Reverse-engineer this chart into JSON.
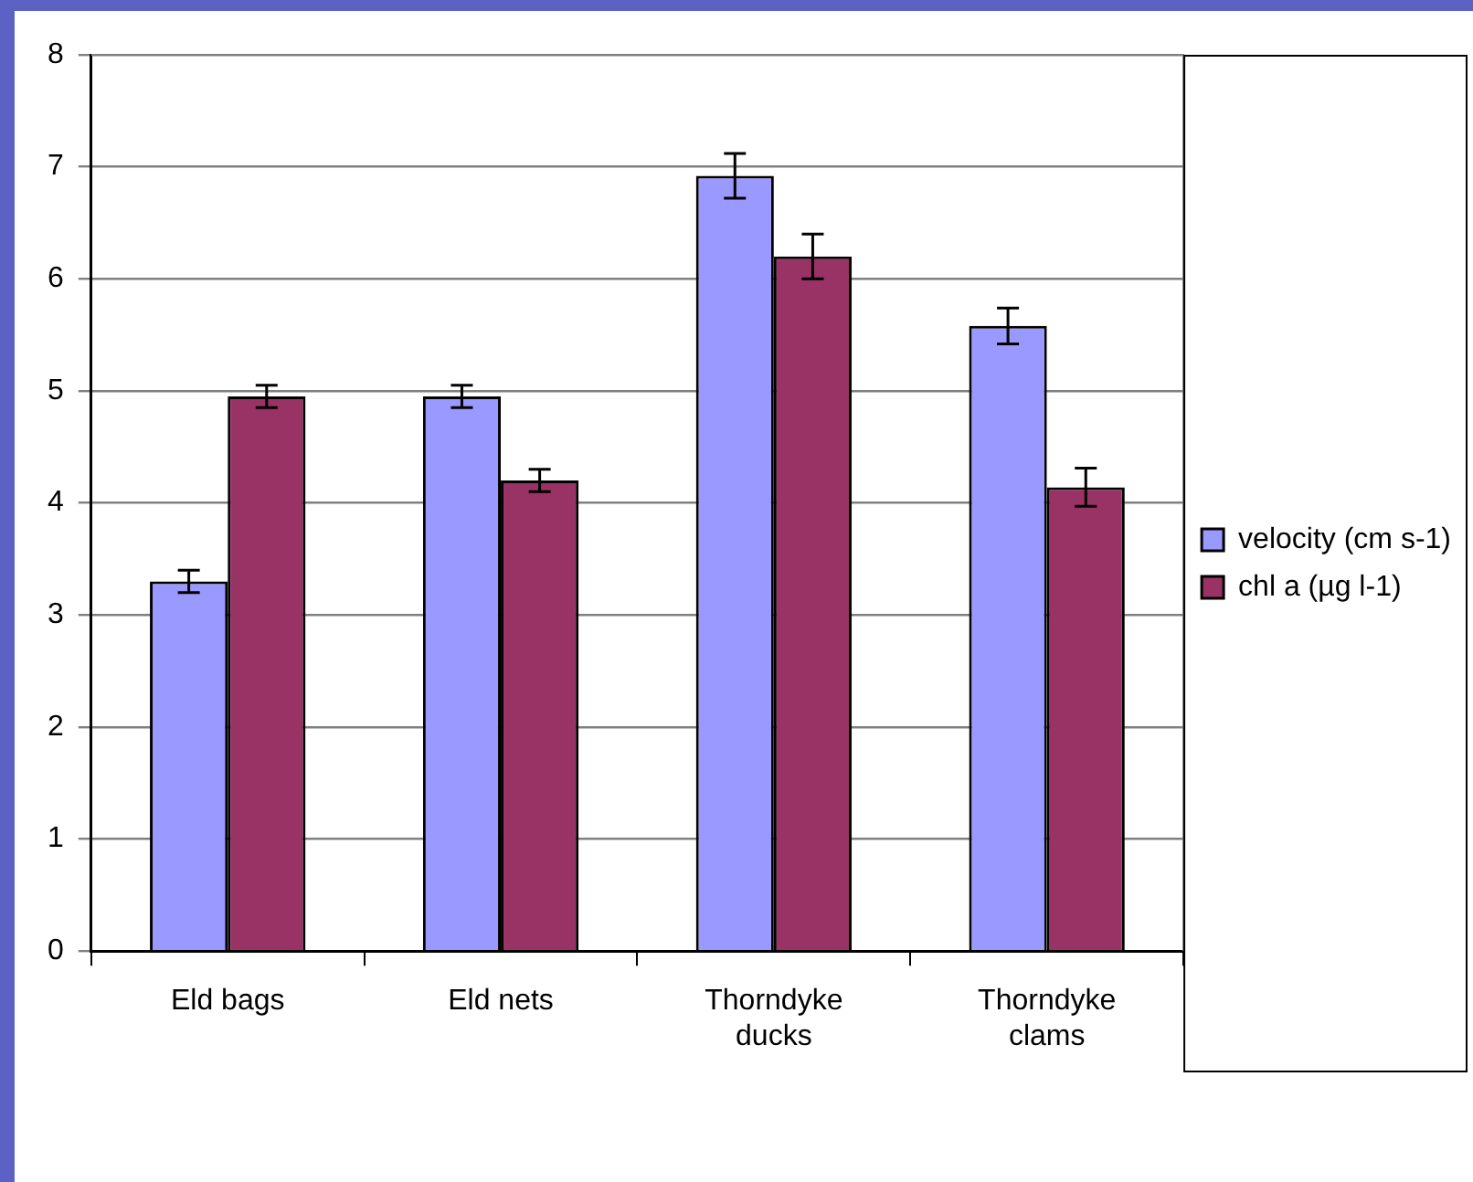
{
  "chart_data": {
    "type": "bar",
    "categories": [
      "Eld bags",
      "Eld nets",
      "Thorndyke ducks",
      "Thorndyke clams"
    ],
    "series": [
      {
        "name": "velocity (cm s-1)",
        "color": "#9999ff",
        "values": [
          3.3,
          4.95,
          6.92,
          5.58
        ],
        "errors": [
          0.1,
          0.1,
          0.2,
          0.16
        ]
      },
      {
        "name": "chl a (µg l-1)",
        "color": "#993366",
        "values": [
          4.95,
          4.2,
          6.2,
          4.14
        ],
        "errors": [
          0.1,
          0.1,
          0.2,
          0.17
        ]
      }
    ],
    "ylim": [
      0,
      8
    ],
    "yticks": [
      0,
      1,
      2,
      3,
      4,
      5,
      6,
      7,
      8
    ],
    "grid": "y",
    "legend": "right"
  }
}
